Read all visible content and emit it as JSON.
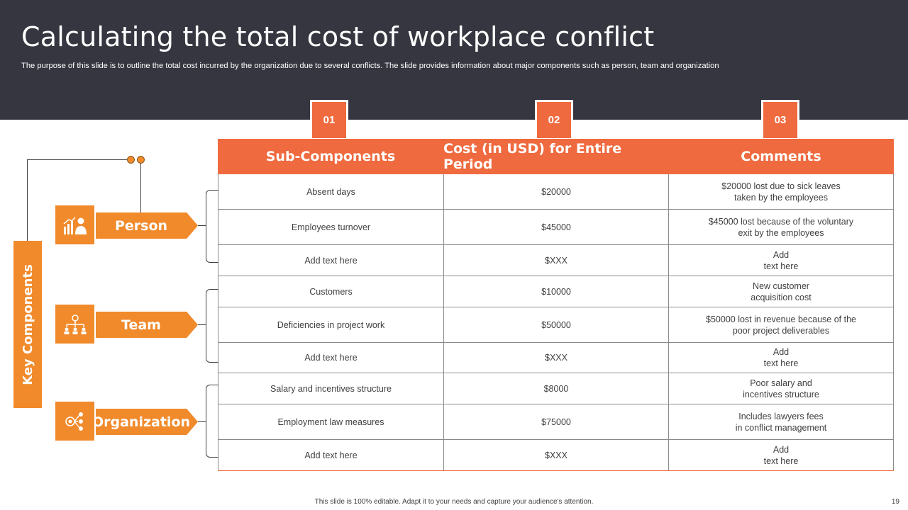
{
  "header": {
    "title": "Calculating the total cost of workplace conflict",
    "subtitle": "The purpose of this slide is to outline the total cost incurred by the organization due to several conflicts. The slide provides information about major components such as person, team and organization"
  },
  "numbers": [
    "01",
    "02",
    "03"
  ],
  "table": {
    "headers": [
      "Sub-Components",
      "Cost (in USD) for Entire Period",
      "Comments"
    ],
    "rows": [
      {
        "sub": "Absent days",
        "cost": "$20000",
        "comment": "$20000  lost due to sick leaves\ntaken by the employees"
      },
      {
        "sub": "Employees turnover",
        "cost": "$45000",
        "comment": "$45000  lost because of the voluntary\nexit by the employees"
      },
      {
        "sub": "Add text here",
        "cost": "$XXX",
        "comment": "Add\ntext here"
      },
      {
        "sub": "Customers",
        "cost": "$10000",
        "comment": "New customer\nacquisition cost"
      },
      {
        "sub": "Deficiencies in project work",
        "cost": "$50000",
        "comment": "$50000  lost in revenue  because of the\npoor project deliverables"
      },
      {
        "sub": "Add text here",
        "cost": "$XXX",
        "comment": "Add\ntext here"
      },
      {
        "sub": "Salary and incentives structure",
        "cost": "$8000",
        "comment": "Poor salary and\nincentives structure"
      },
      {
        "sub": "Employment law measures",
        "cost": "$75000",
        "comment": "Includes lawyers fees\nin conflict management"
      },
      {
        "sub": "Add text here",
        "cost": "$XXX",
        "comment": "Add\ntext here"
      }
    ]
  },
  "key_components": {
    "label": "Key Components",
    "items": [
      {
        "label": "Person",
        "icon": "person-growth-icon"
      },
      {
        "label": "Team",
        "icon": "team-hierarchy-icon"
      },
      {
        "label": "Organization",
        "icon": "organization-network-icon"
      }
    ]
  },
  "colors": {
    "accent": "#ef6a3f",
    "orange": "#f08a2b",
    "header_bg": "#353640"
  },
  "footer": {
    "note": "This slide is 100% editable.  Adapt it to your needs and capture your audience's attention.",
    "page": "19"
  }
}
